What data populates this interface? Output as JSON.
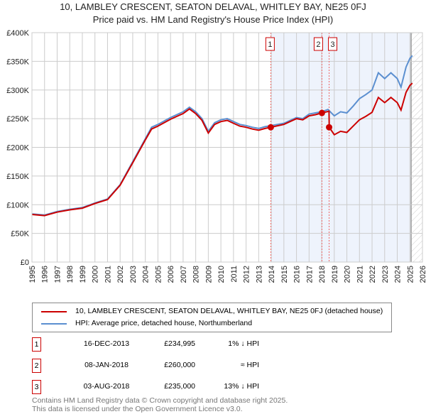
{
  "title": "10, LAMBLEY CRESCENT, SEATON DELAVAL, WHITLEY BAY, NE25 0FJ",
  "subtitle": "Price paid vs. HM Land Registry's House Price Index (HPI)",
  "chart_data": {
    "type": "line",
    "xlim": [
      1995,
      2026
    ],
    "ylim": [
      0,
      400000
    ],
    "x_ticks": [
      "1995",
      "1996",
      "1997",
      "1998",
      "1999",
      "2000",
      "2001",
      "2002",
      "2003",
      "2004",
      "2005",
      "2006",
      "2007",
      "2008",
      "2009",
      "2010",
      "2011",
      "2012",
      "2013",
      "2014",
      "2015",
      "2016",
      "2017",
      "2018",
      "2019",
      "2020",
      "2021",
      "2022",
      "2023",
      "2024",
      "2025",
      "2026"
    ],
    "y_ticks": [
      {
        "v": 0,
        "label": "£0"
      },
      {
        "v": 50000,
        "label": "£50K"
      },
      {
        "v": 100000,
        "label": "£100K"
      },
      {
        "v": 150000,
        "label": "£150K"
      },
      {
        "v": 200000,
        "label": "£200K"
      },
      {
        "v": 250000,
        "label": "£250K"
      },
      {
        "v": 300000,
        "label": "£300K"
      },
      {
        "v": 350000,
        "label": "£350K"
      },
      {
        "v": 400000,
        "label": "£400K"
      }
    ],
    "series": [
      {
        "name": "HPI: Average price, detached house, Northumberland",
        "color": "#5b8fd0",
        "x": [
          1995,
          1996,
          1997,
          1998,
          1999,
          2000,
          2001,
          2002,
          2003,
          2004,
          2004.5,
          2005,
          2006,
          2007,
          2007.5,
          2008,
          2008.5,
          2009,
          2009.5,
          2010,
          2010.5,
          2011,
          2011.5,
          2012,
          2012.5,
          2013,
          2013.5,
          2014,
          2015,
          2016,
          2016.5,
          2017,
          2017.5,
          2018,
          2018.5,
          2019,
          2019.5,
          2020,
          2020.5,
          2021,
          2021.5,
          2022,
          2022.5,
          2023,
          2023.5,
          2024,
          2024.3,
          2024.7,
          2025,
          2025.2
        ],
        "y": [
          84000,
          82000,
          88000,
          92000,
          95000,
          103000,
          110000,
          135000,
          175000,
          215000,
          235000,
          240000,
          252000,
          262000,
          270000,
          262000,
          250000,
          228000,
          243000,
          248000,
          250000,
          245000,
          240000,
          238000,
          235000,
          233000,
          236000,
          238000,
          242000,
          252000,
          250000,
          258000,
          260000,
          262000,
          266000,
          255000,
          262000,
          260000,
          272000,
          285000,
          292000,
          300000,
          330000,
          320000,
          330000,
          320000,
          305000,
          340000,
          355000,
          360000
        ]
      },
      {
        "name": "10, LAMBLEY CRESCENT, SEATON DELAVAL, WHITLEY BAY, NE25 0FJ (detached house)",
        "color": "#cc0000",
        "x": [
          1995,
          1996,
          1997,
          1998,
          1999,
          2000,
          2001,
          2002,
          2003,
          2004,
          2004.5,
          2005,
          2006,
          2007,
          2007.5,
          2008,
          2008.5,
          2009,
          2009.5,
          2010,
          2010.5,
          2011,
          2011.5,
          2012,
          2012.5,
          2013,
          2013.5,
          2013.96,
          2015,
          2016,
          2016.5,
          2017,
          2017.5,
          2018.02,
          2018.58,
          2018.6,
          2019,
          2019.5,
          2020,
          2020.5,
          2021,
          2021.5,
          2022,
          2022.5,
          2023,
          2023.5,
          2024,
          2024.3,
          2024.7,
          2025,
          2025.2
        ],
        "y": [
          83000,
          81000,
          87000,
          91000,
          94000,
          102000,
          109000,
          134000,
          173000,
          213000,
          232000,
          237000,
          249000,
          259000,
          267000,
          259000,
          247000,
          225000,
          240000,
          245000,
          247000,
          242000,
          237000,
          235000,
          232000,
          230000,
          233000,
          234995,
          240000,
          250000,
          248000,
          255000,
          257000,
          260000,
          263000,
          235000,
          222000,
          228000,
          226000,
          237000,
          248000,
          254000,
          261000,
          287000,
          278000,
          287000,
          278000,
          265000,
          296000,
          308000,
          312000
        ]
      }
    ],
    "sales": [
      {
        "n": "1",
        "x": 2013.96,
        "price": 234995,
        "date": "16-DEC-2013",
        "price_label": "£234,995",
        "hpi": "1% ↓ HPI"
      },
      {
        "n": "2",
        "x": 2018.02,
        "price": 260000,
        "date": "08-JAN-2018",
        "price_label": "£260,000",
        "hpi": "≈ HPI"
      },
      {
        "n": "3",
        "x": 2018.59,
        "price": 235000,
        "date": "03-AUG-2018",
        "price_label": "£235,000",
        "hpi": "13% ↓ HPI"
      }
    ],
    "grid": true
  },
  "footer": {
    "line1": "Contains HM Land Registry data © Crown copyright and database right 2025.",
    "line2": "This data is licensed under the Open Government Licence v3.0."
  }
}
